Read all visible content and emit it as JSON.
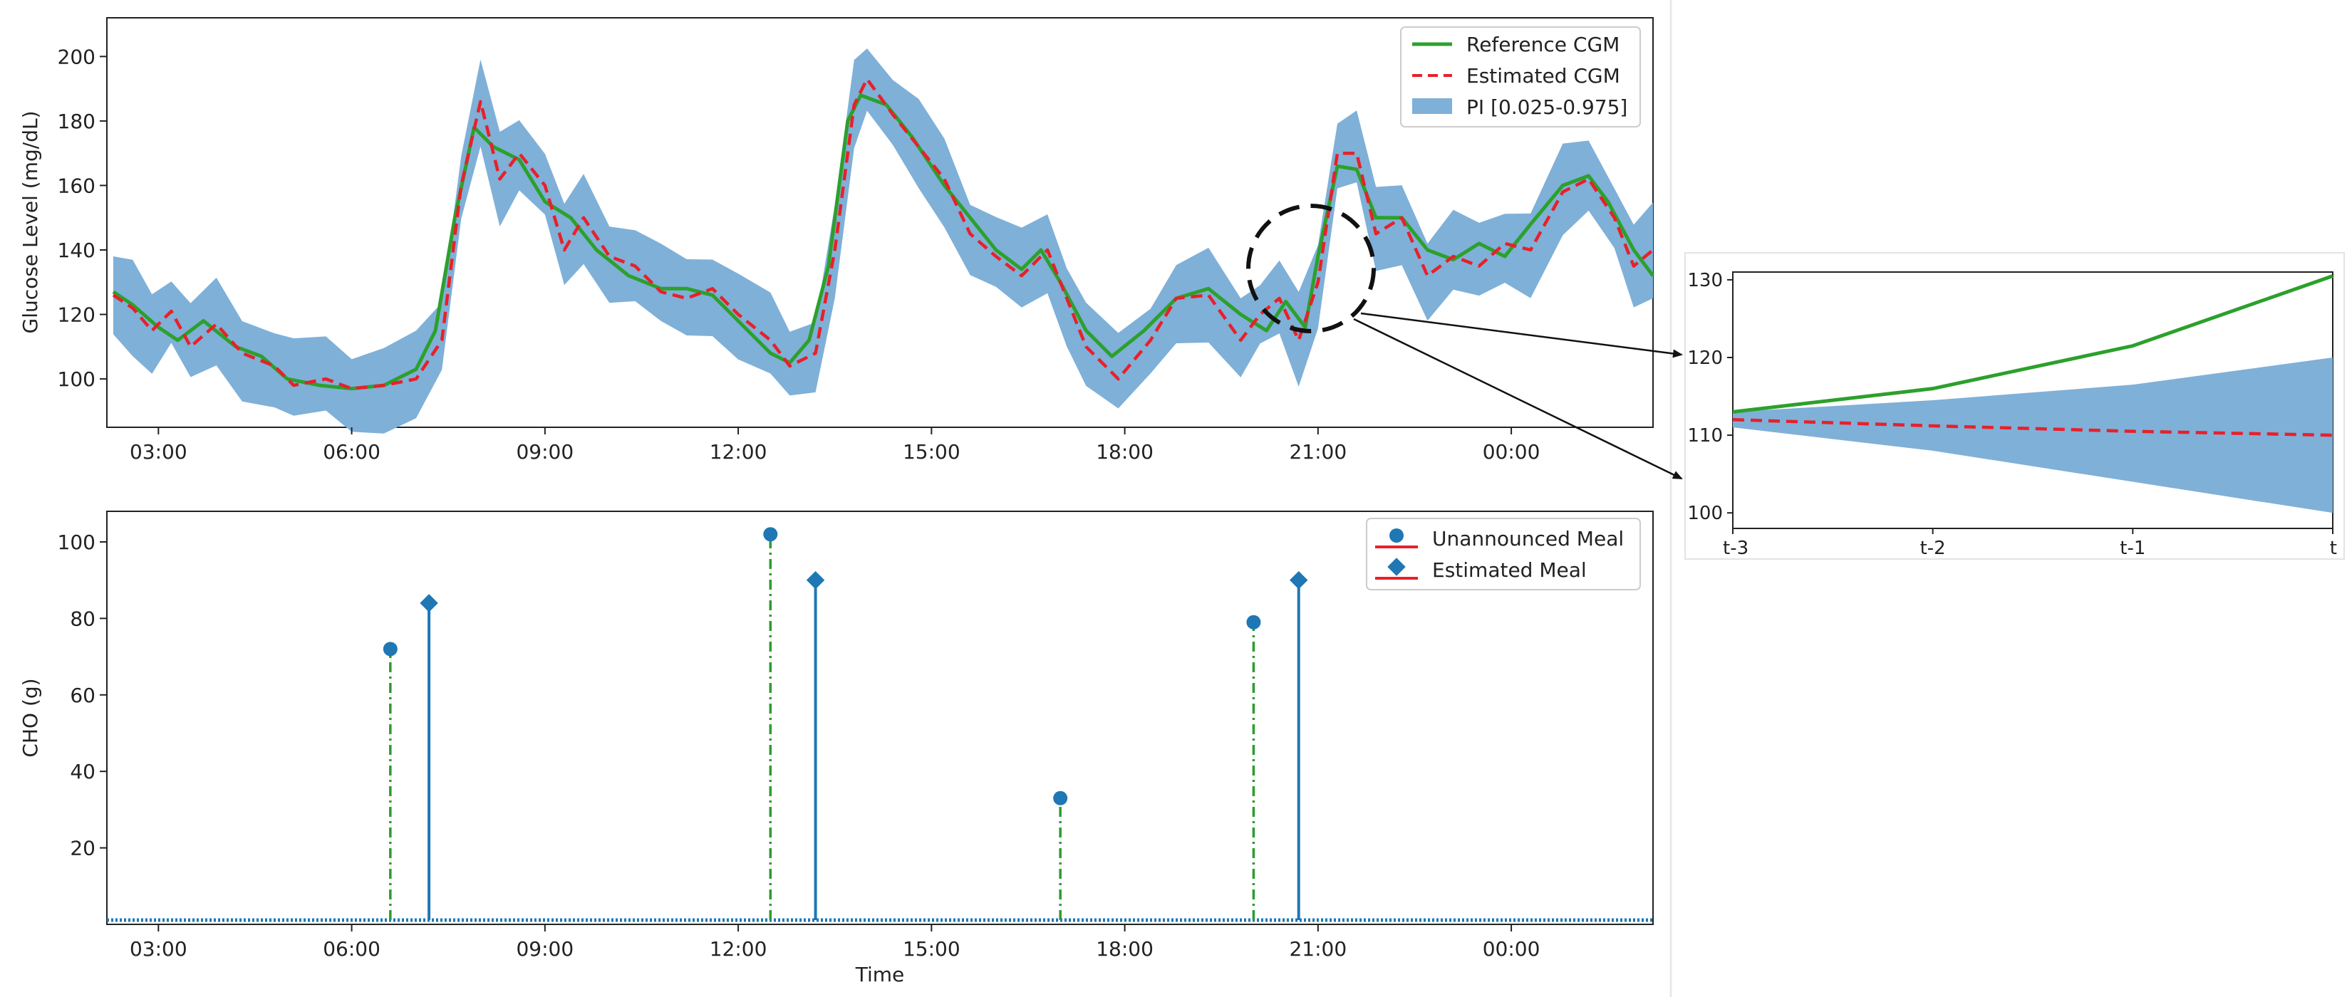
{
  "chart_data": [
    {
      "id": "glucose",
      "type": "line",
      "ylabel": "Glucose Level (mg/dL)",
      "xlabel": "",
      "ylim": [
        85,
        212
      ],
      "yticks": [
        100,
        120,
        140,
        160,
        180,
        200
      ],
      "xlim_hours": [
        2.2,
        26.2
      ],
      "xticks": [
        {
          "h": 3,
          "label": "03:00"
        },
        {
          "h": 6,
          "label": "06:00"
        },
        {
          "h": 9,
          "label": "09:00"
        },
        {
          "h": 12,
          "label": "12:00"
        },
        {
          "h": 15,
          "label": "15:00"
        },
        {
          "h": 18,
          "label": "18:00"
        },
        {
          "h": 21,
          "label": "21:00"
        },
        {
          "h": 24,
          "label": "00:00"
        }
      ],
      "legend": {
        "position": "top-right",
        "entries": [
          "Reference CGM",
          "Estimated CGM",
          "PI [0.025-0.975]"
        ]
      },
      "series_reference": [
        [
          2.3,
          127
        ],
        [
          2.6,
          123
        ],
        [
          3.0,
          116
        ],
        [
          3.3,
          112
        ],
        [
          3.7,
          118
        ],
        [
          4.2,
          110
        ],
        [
          4.6,
          107
        ],
        [
          5.0,
          100
        ],
        [
          5.5,
          98
        ],
        [
          6.0,
          97
        ],
        [
          6.5,
          98
        ],
        [
          7.0,
          103
        ],
        [
          7.3,
          115
        ],
        [
          7.6,
          150
        ],
        [
          7.9,
          178
        ],
        [
          8.2,
          172
        ],
        [
          8.6,
          168
        ],
        [
          9.0,
          155
        ],
        [
          9.4,
          150
        ],
        [
          9.8,
          140
        ],
        [
          10.3,
          132
        ],
        [
          10.8,
          128
        ],
        [
          11.2,
          128
        ],
        [
          11.6,
          126
        ],
        [
          12.0,
          118
        ],
        [
          12.5,
          108
        ],
        [
          12.8,
          105
        ],
        [
          13.1,
          112
        ],
        [
          13.4,
          135
        ],
        [
          13.7,
          180
        ],
        [
          13.9,
          188
        ],
        [
          14.3,
          185
        ],
        [
          14.7,
          175
        ],
        [
          15.2,
          160
        ],
        [
          15.6,
          150
        ],
        [
          16.0,
          140
        ],
        [
          16.4,
          134
        ],
        [
          16.7,
          140
        ],
        [
          17.0,
          130
        ],
        [
          17.4,
          115
        ],
        [
          17.8,
          107
        ],
        [
          18.3,
          115
        ],
        [
          18.8,
          125
        ],
        [
          19.3,
          128
        ],
        [
          19.8,
          120
        ],
        [
          20.2,
          115
        ],
        [
          20.5,
          124
        ],
        [
          20.8,
          116
        ],
        [
          21.0,
          138
        ],
        [
          21.3,
          166
        ],
        [
          21.6,
          165
        ],
        [
          21.9,
          150
        ],
        [
          22.3,
          150
        ],
        [
          22.7,
          140
        ],
        [
          23.1,
          137
        ],
        [
          23.5,
          142
        ],
        [
          23.9,
          138
        ],
        [
          24.3,
          148
        ],
        [
          24.8,
          160
        ],
        [
          25.2,
          163
        ],
        [
          25.5,
          155
        ],
        [
          25.9,
          140
        ],
        [
          26.2,
          132
        ]
      ],
      "series_estimated": [
        [
          2.3,
          126
        ],
        [
          2.6,
          122
        ],
        [
          2.9,
          115
        ],
        [
          3.2,
          121
        ],
        [
          3.5,
          110
        ],
        [
          3.9,
          117
        ],
        [
          4.3,
          108
        ],
        [
          4.8,
          104
        ],
        [
          5.1,
          98
        ],
        [
          5.6,
          100
        ],
        [
          6.0,
          97
        ],
        [
          6.5,
          98
        ],
        [
          7.0,
          100
        ],
        [
          7.4,
          112
        ],
        [
          7.7,
          160
        ],
        [
          8.0,
          186
        ],
        [
          8.3,
          162
        ],
        [
          8.6,
          170
        ],
        [
          9.0,
          160
        ],
        [
          9.3,
          140
        ],
        [
          9.6,
          150
        ],
        [
          10.0,
          138
        ],
        [
          10.4,
          135
        ],
        [
          10.8,
          127
        ],
        [
          11.2,
          125
        ],
        [
          11.6,
          128
        ],
        [
          12.0,
          120
        ],
        [
          12.5,
          112
        ],
        [
          12.8,
          104
        ],
        [
          13.2,
          108
        ],
        [
          13.5,
          140
        ],
        [
          13.8,
          185
        ],
        [
          14.0,
          193
        ],
        [
          14.4,
          182
        ],
        [
          14.8,
          172
        ],
        [
          15.2,
          162
        ],
        [
          15.6,
          145
        ],
        [
          16.0,
          138
        ],
        [
          16.4,
          132
        ],
        [
          16.8,
          140
        ],
        [
          17.1,
          125
        ],
        [
          17.4,
          110
        ],
        [
          17.9,
          100
        ],
        [
          18.4,
          112
        ],
        [
          18.8,
          125
        ],
        [
          19.3,
          126
        ],
        [
          19.8,
          112
        ],
        [
          20.1,
          120
        ],
        [
          20.4,
          125
        ],
        [
          20.7,
          112
        ],
        [
          21.0,
          130
        ],
        [
          21.3,
          170
        ],
        [
          21.6,
          170
        ],
        [
          21.9,
          145
        ],
        [
          22.3,
          150
        ],
        [
          22.7,
          132
        ],
        [
          23.1,
          138
        ],
        [
          23.5,
          135
        ],
        [
          23.9,
          142
        ],
        [
          24.3,
          140
        ],
        [
          24.8,
          158
        ],
        [
          25.2,
          162
        ],
        [
          25.6,
          150
        ],
        [
          25.9,
          135
        ],
        [
          26.2,
          140
        ]
      ],
      "pi_halfwidth": 12
    },
    {
      "id": "meals",
      "type": "stem",
      "ylabel": "CHO (g)",
      "xlabel": "Time",
      "ylim": [
        0,
        108
      ],
      "yticks": [
        20,
        40,
        60,
        80,
        100
      ],
      "xlim_hours": [
        2.2,
        26.2
      ],
      "xticks": [
        {
          "h": 3,
          "label": "03:00"
        },
        {
          "h": 6,
          "label": "06:00"
        },
        {
          "h": 9,
          "label": "09:00"
        },
        {
          "h": 12,
          "label": "12:00"
        },
        {
          "h": 15,
          "label": "15:00"
        },
        {
          "h": 18,
          "label": "18:00"
        },
        {
          "h": 21,
          "label": "21:00"
        },
        {
          "h": 24,
          "label": "00:00"
        }
      ],
      "legend": {
        "position": "top-right",
        "entries": [
          "Unannounced Meal",
          "Estimated Meal"
        ]
      },
      "unannounced": [
        {
          "h": 6.6,
          "v": 72
        },
        {
          "h": 12.5,
          "v": 102
        },
        {
          "h": 17.0,
          "v": 33
        },
        {
          "h": 20.0,
          "v": 79
        }
      ],
      "estimated": [
        {
          "h": 7.2,
          "v": 84
        },
        {
          "h": 13.2,
          "v": 90
        },
        {
          "h": 20.7,
          "v": 90
        }
      ]
    },
    {
      "id": "zoom",
      "type": "line",
      "ylim": [
        98,
        131
      ],
      "yticks": [
        100,
        110,
        120,
        130
      ],
      "categories": [
        "t-3",
        "t-2",
        "t-1",
        "t"
      ],
      "reference": [
        113,
        116,
        121.5,
        130.5
      ],
      "estimated": [
        112,
        111.2,
        110.5,
        110
      ],
      "pi_lower": [
        111,
        108,
        104,
        100
      ],
      "pi_upper": [
        113,
        114.5,
        116.5,
        120
      ]
    }
  ],
  "colors": {
    "reference": "#2ca02c",
    "estimated": "#e8202a",
    "band": "#7fb0d8",
    "stem": "#1f77b4",
    "dashstem": "#2e9b2e"
  }
}
